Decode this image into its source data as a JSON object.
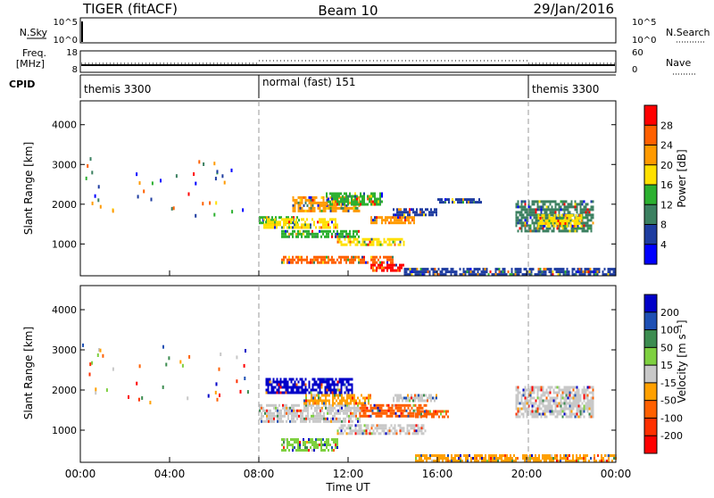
{
  "header": {
    "title": "TIGER (fitACF)",
    "beam": "Beam 10",
    "date": "29/Jan/2016"
  },
  "status_panels": {
    "nsky_label": "N.Sky",
    "nsky_ticks": [
      "10^5",
      "10^0"
    ],
    "nsearch_label": "N.Search",
    "freq_label": "Freq.",
    "freq_unit": "[MHz]",
    "freq_ticks": [
      "18",
      "8"
    ],
    "nave_ticks": [
      "60",
      "0"
    ],
    "nave_label": "Nave",
    "cpid_label": "CPID",
    "cpid_segments": [
      {
        "label": "themis 3300",
        "start_hour": 0,
        "end_hour": 8
      },
      {
        "label": "normal (fast) 151",
        "start_hour": 8,
        "end_hour": 20
      },
      {
        "label": "themis 3300",
        "start_hour": 20,
        "end_hour": 24
      }
    ]
  },
  "chart_data": [
    {
      "type": "heatmap",
      "name": "Power",
      "ylabel": "Slant Range [km]",
      "yticks": [
        1000,
        2000,
        3000,
        4000
      ],
      "ylim": [
        200,
        4600
      ],
      "xlim_hours": [
        0,
        24
      ],
      "colorbar": {
        "label": "Power [dB]",
        "ticks": [
          "28",
          "24",
          "20",
          "16",
          "12",
          "8",
          "4"
        ],
        "colors": [
          "#ff0000",
          "#ff6000",
          "#ff9a00",
          "#ffe000",
          "#2cb030",
          "#3b8060",
          "#1e3ca0",
          "#0000ff"
        ]
      },
      "regions": [
        {
          "t0": 8.0,
          "t1": 9.8,
          "r0": 1500,
          "r1": 1700,
          "color": "#2cb030"
        },
        {
          "t0": 9.5,
          "t1": 12.5,
          "r0": 1800,
          "r1": 2200,
          "color": "#ff9a00"
        },
        {
          "t0": 11.0,
          "t1": 13.5,
          "r0": 2000,
          "r1": 2300,
          "color": "#2cb030"
        },
        {
          "t0": 8.2,
          "t1": 11.5,
          "r0": 1400,
          "r1": 1650,
          "color": "#ffe000"
        },
        {
          "t0": 9.0,
          "t1": 12.5,
          "r0": 1150,
          "r1": 1350,
          "color": "#2cb030"
        },
        {
          "t0": 11.5,
          "t1": 14.5,
          "r0": 950,
          "r1": 1150,
          "color": "#ffe000"
        },
        {
          "t0": 13.0,
          "t1": 15.0,
          "r0": 1500,
          "r1": 1700,
          "color": "#ff9a00"
        },
        {
          "t0": 9.0,
          "t1": 14.0,
          "r0": 500,
          "r1": 700,
          "color": "#ff6000"
        },
        {
          "t0": 13.0,
          "t1": 14.5,
          "r0": 300,
          "r1": 500,
          "color": "#ff0000"
        },
        {
          "t0": 14.0,
          "t1": 16.0,
          "r0": 1700,
          "r1": 1900,
          "color": "#1e3ca0"
        },
        {
          "t0": 16.0,
          "t1": 18.0,
          "r0": 2050,
          "r1": 2150,
          "color": "#1e3ca0"
        },
        {
          "t0": 19.5,
          "t1": 23.0,
          "r0": 1300,
          "r1": 2100,
          "color": "#3b8060"
        },
        {
          "t0": 20.5,
          "t1": 22.5,
          "r0": 1450,
          "r1": 1750,
          "color": "#ffe000"
        },
        {
          "t0": 14.5,
          "t1": 24.0,
          "r0": 200,
          "r1": 400,
          "color": "#1e3ca0"
        }
      ]
    },
    {
      "type": "heatmap",
      "name": "Velocity",
      "ylabel": "Slant Range [km]",
      "yticks": [
        1000,
        2000,
        3000,
        4000
      ],
      "ylim": [
        200,
        4600
      ],
      "xlim_hours": [
        0,
        24
      ],
      "xticks": [
        "00:00",
        "04:00",
        "08:00",
        "12:00",
        "16:00",
        "20:00",
        "00:00"
      ],
      "xlabel": "Time UT",
      "colorbar": {
        "label": "Velocity [m s⁻¹]",
        "ticks": [
          "200",
          "100",
          "50",
          "15",
          "-15",
          "-50",
          "-100",
          "-200"
        ],
        "colors": [
          "#0000c8",
          "#1e50b4",
          "#3c8c50",
          "#7ed040",
          "#c8c8c8",
          "#ffa000",
          "#ff6000",
          "#ff3000",
          "#ff0000"
        ]
      },
      "regions": [
        {
          "t0": 8.3,
          "t1": 12.2,
          "r0": 1950,
          "r1": 2300,
          "color": "#0000c8"
        },
        {
          "t0": 8.0,
          "t1": 12.5,
          "r0": 1200,
          "r1": 1650,
          "color": "#c8c8c8"
        },
        {
          "t0": 10.0,
          "t1": 13.0,
          "r0": 1650,
          "r1": 1900,
          "color": "#ffa000"
        },
        {
          "t0": 12.5,
          "t1": 15.5,
          "r0": 1350,
          "r1": 1650,
          "color": "#ff6000"
        },
        {
          "t0": 15.0,
          "t1": 16.5,
          "r0": 1300,
          "r1": 1500,
          "color": "#ff6000"
        },
        {
          "t0": 9.0,
          "t1": 11.5,
          "r0": 500,
          "r1": 800,
          "color": "#7ed040"
        },
        {
          "t0": 11.5,
          "t1": 15.5,
          "r0": 900,
          "r1": 1150,
          "color": "#c8c8c8"
        },
        {
          "t0": 14.0,
          "t1": 16.0,
          "r0": 1700,
          "r1": 1900,
          "color": "#c8c8c8"
        },
        {
          "t0": 19.5,
          "t1": 23.0,
          "r0": 1300,
          "r1": 2100,
          "color": "#c8c8c8"
        },
        {
          "t0": 15.0,
          "t1": 24.0,
          "r0": 200,
          "r1": 400,
          "color": "#ffa000"
        }
      ]
    }
  ]
}
